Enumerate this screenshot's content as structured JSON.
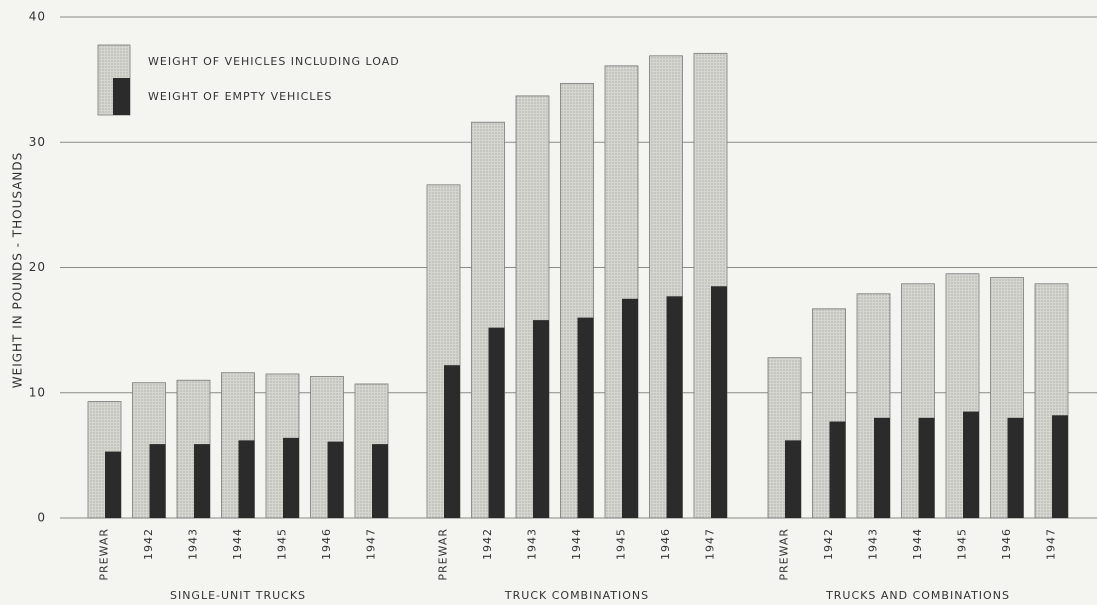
{
  "chart_data": {
    "type": "bar",
    "ylabel": "WEIGHT IN POUNDS - THOUSANDS",
    "ylim": [
      0,
      40
    ],
    "yticks": [
      0,
      10,
      20,
      30,
      40
    ],
    "grid": true,
    "groups": [
      "SINGLE-UNIT TRUCKS",
      "TRUCK COMBINATIONS",
      "TRUCKS AND COMBINATIONS"
    ],
    "categories": [
      [
        "PREWAR",
        "1942",
        "1943",
        "1944",
        "1945",
        "1946",
        "1947"
      ],
      [
        "PREWAR",
        "1942",
        "1943",
        "1944",
        "1945",
        "1946",
        "1947"
      ],
      [
        "PREWAR",
        "1942",
        "1943",
        "1944",
        "1945",
        "1946",
        "1947"
      ]
    ],
    "series": [
      {
        "name": "WEIGHT OF VEHICLES INCLUDING LOAD",
        "color": "#d6d6d0",
        "values": [
          [
            9.3,
            10.8,
            11.0,
            11.6,
            11.5,
            11.3,
            10.7
          ],
          [
            26.6,
            31.6,
            33.7,
            34.7,
            36.1,
            36.9,
            37.1
          ],
          [
            12.8,
            16.7,
            17.9,
            18.7,
            19.5,
            19.2,
            18.7
          ]
        ]
      },
      {
        "name": "WEIGHT OF EMPTY VEHICLES",
        "color": "#2b2b2b",
        "values": [
          [
            5.3,
            5.9,
            5.9,
            6.2,
            6.4,
            6.1,
            5.9
          ],
          [
            12.2,
            15.2,
            15.8,
            16.0,
            17.5,
            17.7,
            18.5
          ],
          [
            6.2,
            7.7,
            8.0,
            8.0,
            8.5,
            8.0,
            8.2
          ]
        ]
      }
    ],
    "legend": "upper left"
  }
}
